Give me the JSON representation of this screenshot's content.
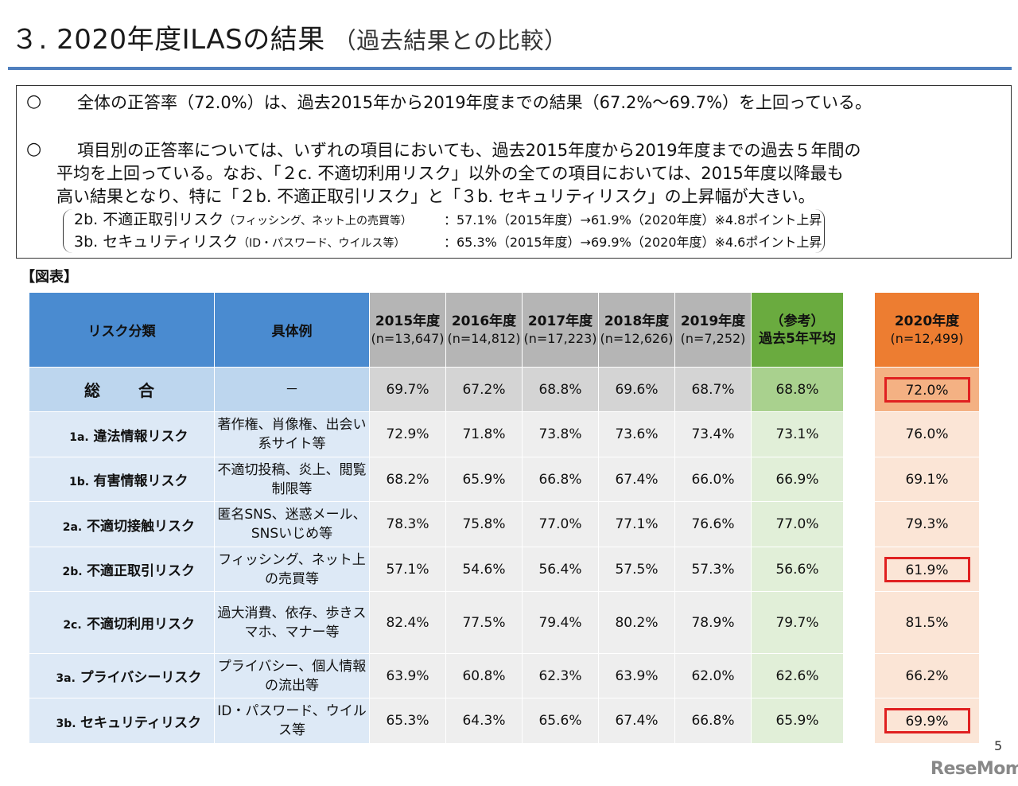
{
  "title": {
    "main": "３. 2020年度ILASの結果",
    "sub": "（過去結果との比較）"
  },
  "summary": {
    "bullet_mark": "○",
    "p1": "全体の正答率（72.0%）は、過去2015年から2019年度までの結果（67.2%〜69.7%）を上回っている。",
    "p2_line1": "項目別の正答率については、いずれの項目においても、過去2015年度から2019年度までの過去５年間の",
    "p2_line2": "平均を上回っている。なお、「２c. 不適切利用リスク」以外の全ての項目においては、2015年度以降最も",
    "p2_line3": "高い結果となり、特に「２b. 不適正取引リスク」と「３b. セキュリティリスク」の上昇幅が大きい。",
    "details": [
      {
        "name": "2b. 不適正取引リスク",
        "note": "（フィッシング、ネット上の売買等）",
        "value": "：57.1%（2015年度）→61.9%（2020年度）※4.8ポイント上昇"
      },
      {
        "name": "3b. セキュリティリスク",
        "note": "（ID・パスワード、ウイルス等）",
        "value": "：65.3%（2015年度）→69.9%（2020年度）※4.6ポイント上昇"
      }
    ]
  },
  "figure_label": "【図表】",
  "table": {
    "header": {
      "risk": "リスク分類",
      "example": "具体例",
      "years": [
        {
          "year": "2015年度",
          "n": "(n=13,647)"
        },
        {
          "year": "2016年度",
          "n": "(n=14,812)"
        },
        {
          "year": "2017年度",
          "n": "(n=17,223)"
        },
        {
          "year": "2018年度",
          "n": "(n=12,626)"
        },
        {
          "year": "2019年度",
          "n": "(n=7,252)"
        }
      ],
      "avg_line1": "（参考）",
      "avg_line2": "過去5年平均",
      "current_year": "2020年度",
      "current_n": "(n=12,499)"
    },
    "rows": [
      {
        "code": "",
        "risk": "総　合",
        "example": "－",
        "values": [
          "69.7%",
          "67.2%",
          "68.8%",
          "69.6%",
          "68.7%"
        ],
        "avg": "68.8%",
        "current": "72.0%",
        "highlight": true
      },
      {
        "code": "1a.",
        "risk": "違法情報リスク",
        "example": "著作権、肖像権、出会い系サイト等",
        "values": [
          "72.9%",
          "71.8%",
          "73.8%",
          "73.6%",
          "73.4%"
        ],
        "avg": "73.1%",
        "current": "76.0%",
        "highlight": false
      },
      {
        "code": "1b.",
        "risk": "有害情報リスク",
        "example": "不適切投稿、炎上、閲覧制限等",
        "values": [
          "68.2%",
          "65.9%",
          "66.8%",
          "67.4%",
          "66.0%"
        ],
        "avg": "66.9%",
        "current": "69.1%",
        "highlight": false
      },
      {
        "code": "2a.",
        "risk": "不適切接触リスク",
        "example": "匿名SNS、迷惑メール、SNSいじめ等",
        "values": [
          "78.3%",
          "75.8%",
          "77.0%",
          "77.1%",
          "76.6%"
        ],
        "avg": "77.0%",
        "current": "79.3%",
        "highlight": false
      },
      {
        "code": "2b.",
        "risk": "不適正取引リスク",
        "example": "フィッシング、ネット上の売買等",
        "values": [
          "57.1%",
          "54.6%",
          "56.4%",
          "57.5%",
          "57.3%"
        ],
        "avg": "56.6%",
        "current": "61.9%",
        "highlight": true
      },
      {
        "code": "2c.",
        "risk": "不適切利用リスク",
        "example": "過大消費、依存、歩きスマホ、マナー等",
        "values": [
          "82.4%",
          "77.5%",
          "79.4%",
          "80.2%",
          "78.9%"
        ],
        "avg": "79.7%",
        "current": "81.5%",
        "highlight": false
      },
      {
        "code": "3a.",
        "risk": "プライバシーリスク",
        "example": "プライバシー、個人情報の流出等",
        "values": [
          "63.9%",
          "60.8%",
          "62.3%",
          "63.9%",
          "62.0%"
        ],
        "avg": "62.6%",
        "current": "66.2%",
        "highlight": false
      },
      {
        "code": "3b.",
        "risk": "セキュリティリスク",
        "example": "ID・パスワード、ウイルス等",
        "values": [
          "65.3%",
          "64.3%",
          "65.6%",
          "67.4%",
          "66.8%"
        ],
        "avg": "65.9%",
        "current": "69.9%",
        "highlight": true
      }
    ]
  },
  "page_number": "5",
  "logo": "ReseMom"
}
